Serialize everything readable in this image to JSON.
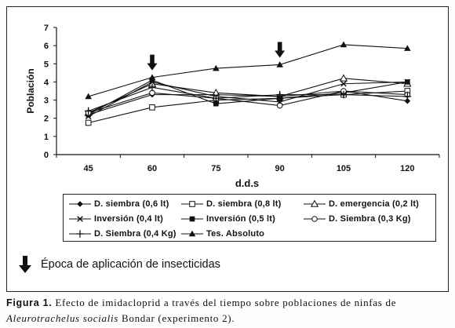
{
  "chart_data": {
    "type": "line",
    "title": "",
    "xlabel": "d.d.s",
    "ylabel": "Población",
    "categories": [
      "45",
      "60",
      "75",
      "90",
      "105",
      "120"
    ],
    "ylim": [
      0,
      7
    ],
    "yticks": [
      0,
      1,
      2,
      3,
      4,
      5,
      6,
      7
    ],
    "grid": false,
    "legend_position": "bottom",
    "application_times": [
      "60",
      "90"
    ],
    "series": [
      {
        "name": "D. siembra (0,6 lt)",
        "marker": "diamond-filled",
        "values": [
          2.2,
          3.3,
          3.3,
          3.2,
          3.5,
          2.95
        ]
      },
      {
        "name": "D. siembra (0,8 lt)",
        "marker": "square-open",
        "values": [
          1.75,
          2.6,
          3.0,
          3.1,
          3.3,
          3.5
        ]
      },
      {
        "name": "D. emergencia (0,2 lt)",
        "marker": "triangle-open",
        "values": [
          2.3,
          3.9,
          3.4,
          3.2,
          4.2,
          3.9
        ]
      },
      {
        "name": "Inversión (0,4 lt)",
        "marker": "x-mark",
        "values": [
          2.1,
          4.0,
          3.2,
          2.9,
          3.9,
          4.0
        ]
      },
      {
        "name": "Inversión (0,5 lt)",
        "marker": "square-filled",
        "values": [
          2.2,
          4.1,
          2.8,
          3.1,
          3.4,
          4.0
        ]
      },
      {
        "name": "D. Siembra (0,3 Kg)",
        "marker": "circle-open",
        "values": [
          2.3,
          3.4,
          3.1,
          2.7,
          3.5,
          3.3
        ]
      },
      {
        "name": "D. Siembra (0,4 Kg)",
        "marker": "plus",
        "values": [
          2.4,
          3.7,
          3.1,
          3.3,
          3.3,
          3.2
        ]
      },
      {
        "name": "Tes. Absoluto",
        "marker": "triangle-filled",
        "values": [
          3.2,
          4.25,
          4.75,
          4.95,
          6.05,
          5.85
        ]
      }
    ],
    "colors": {
      "line": "#111111",
      "background": "#ffffff"
    }
  },
  "legend_note": {
    "icon": "down-arrow-icon",
    "text": "Época de aplicación de insecticidas"
  },
  "caption": {
    "label": "Figura 1.",
    "text": "Efecto de imidacloprid a través del tiempo sobre poblaciones de ninfas de",
    "species": "Aleurotrachelus socialis",
    "rest": " Bondar (experimento 2)."
  }
}
